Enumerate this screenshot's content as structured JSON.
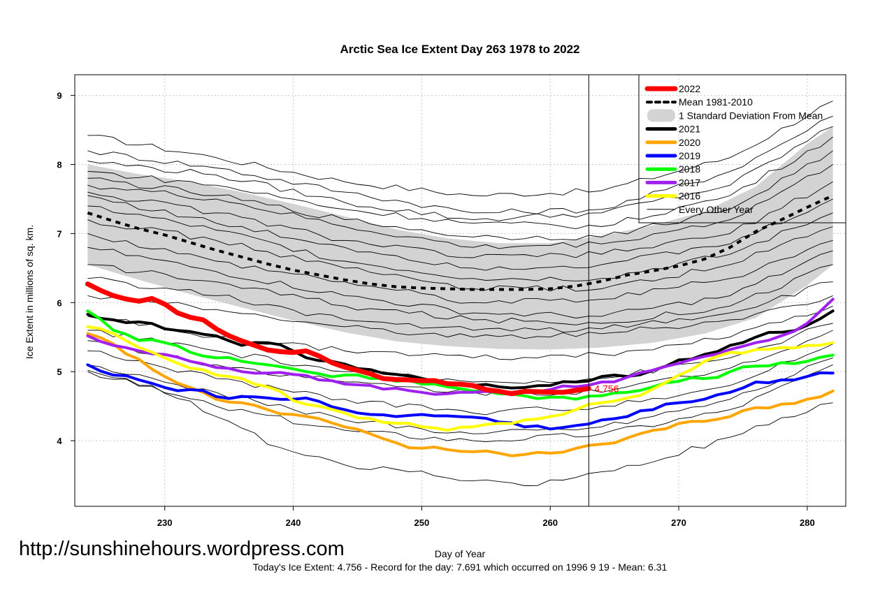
{
  "chart_data": {
    "type": "line",
    "title": "Arctic Sea Ice Extent Day 263 1978 to 2022",
    "xlabel": "Day of Year",
    "ylabel": "Ice Extent in millions of sq. km.",
    "xlim": [
      223,
      283
    ],
    "ylim": [
      3.05,
      9.3
    ],
    "x_ticks": [
      230,
      240,
      250,
      260,
      270,
      280
    ],
    "y_ticks": [
      4,
      5,
      6,
      7,
      8,
      9
    ],
    "current_day": 263,
    "current_value_label": "4.756",
    "legend": [
      {
        "label": "2022",
        "color": "#ff0000",
        "style": "solid-thick"
      },
      {
        "label": "Mean 1981-2010",
        "color": "#000000",
        "style": "dashed"
      },
      {
        "label": "1 Standard Deviation From Mean",
        "color": "#d3d3d3",
        "style": "band"
      },
      {
        "label": "2021",
        "color": "#000000",
        "style": "solid"
      },
      {
        "label": "2020",
        "color": "#ffa500",
        "style": "solid"
      },
      {
        "label": "2019",
        "color": "#0000ff",
        "style": "solid"
      },
      {
        "label": "2018",
        "color": "#00ff00",
        "style": "solid"
      },
      {
        "label": "2017",
        "color": "#a020f0",
        "style": "solid"
      },
      {
        "label": "2016",
        "color": "#ffff00",
        "style": "solid"
      },
      {
        "label": "Every Other Year",
        "color": "#000000",
        "style": "thin"
      }
    ],
    "mean": {
      "name": "Mean 1981-2010",
      "x": [
        224,
        226,
        228,
        230,
        232,
        234,
        236,
        238,
        240,
        242,
        244,
        246,
        248,
        250,
        252,
        254,
        256,
        258,
        260,
        262,
        264,
        266,
        268,
        270,
        272,
        274,
        276,
        278,
        280,
        282
      ],
      "values": [
        7.3,
        7.18,
        7.07,
        6.98,
        6.87,
        6.76,
        6.66,
        6.56,
        6.47,
        6.4,
        6.33,
        6.27,
        6.23,
        6.21,
        6.2,
        6.19,
        6.19,
        6.19,
        6.2,
        6.24,
        6.31,
        6.4,
        6.46,
        6.53,
        6.63,
        6.8,
        7.03,
        7.2,
        7.38,
        7.55
      ]
    },
    "std_band": {
      "name": "1 Standard Deviation From Mean",
      "x": [
        224,
        228,
        232,
        236,
        240,
        244,
        248,
        252,
        256,
        260,
        264,
        268,
        272,
        276,
        280,
        282
      ],
      "upper": [
        8.0,
        7.86,
        7.75,
        7.6,
        7.43,
        7.25,
        7.06,
        6.93,
        6.86,
        6.86,
        6.97,
        7.12,
        7.32,
        7.68,
        8.3,
        8.55
      ],
      "lower": [
        6.55,
        6.33,
        6.12,
        5.93,
        5.74,
        5.57,
        5.44,
        5.37,
        5.33,
        5.32,
        5.35,
        5.42,
        5.55,
        5.78,
        6.25,
        6.55
      ]
    },
    "series": [
      {
        "name": "2022",
        "color": "#ff0000",
        "width": 7,
        "x": [
          224,
          226,
          228,
          229,
          231,
          233,
          235,
          237,
          239,
          241,
          243,
          245,
          247,
          249,
          251,
          253,
          255,
          257,
          259,
          261,
          263
        ],
        "values": [
          6.27,
          6.1,
          6.02,
          6.06,
          5.85,
          5.75,
          5.52,
          5.38,
          5.29,
          5.3,
          5.13,
          5.02,
          4.9,
          4.88,
          4.87,
          4.82,
          4.74,
          4.68,
          4.71,
          4.7,
          4.756
        ]
      },
      {
        "name": "2021",
        "color": "#000000",
        "width": 4,
        "x": [
          224,
          226,
          228,
          230,
          232,
          234,
          236,
          238,
          240,
          242,
          244,
          246,
          248,
          250,
          252,
          254,
          256,
          258,
          260,
          262,
          264,
          266,
          268,
          270,
          272,
          274,
          276,
          278,
          280,
          282
        ],
        "values": [
          5.83,
          5.75,
          5.72,
          5.62,
          5.58,
          5.52,
          5.38,
          5.42,
          5.3,
          5.16,
          5.11,
          5.03,
          4.96,
          4.9,
          4.84,
          4.8,
          4.78,
          4.77,
          4.8,
          4.85,
          4.93,
          4.93,
          5.02,
          5.17,
          5.25,
          5.38,
          5.5,
          5.57,
          5.67,
          5.88
        ]
      },
      {
        "name": "2020",
        "color": "#ffa500",
        "width": 4,
        "x": [
          224,
          226,
          228,
          230,
          232,
          234,
          236,
          238,
          240,
          242,
          244,
          246,
          248,
          250,
          252,
          254,
          256,
          258,
          260,
          262,
          264,
          266,
          268,
          270,
          272,
          274,
          276,
          278,
          280,
          282
        ],
        "values": [
          5.55,
          5.4,
          5.18,
          4.93,
          4.77,
          4.6,
          4.55,
          4.45,
          4.38,
          4.32,
          4.2,
          4.1,
          3.97,
          3.89,
          3.87,
          3.84,
          3.82,
          3.8,
          3.82,
          3.89,
          3.95,
          4.04,
          4.15,
          4.25,
          4.28,
          4.35,
          4.48,
          4.53,
          4.6,
          4.72
        ]
      },
      {
        "name": "2019",
        "color": "#0000ff",
        "width": 4,
        "x": [
          224,
          226,
          228,
          230,
          232,
          234,
          236,
          238,
          240,
          242,
          244,
          246,
          248,
          250,
          252,
          254,
          256,
          258,
          260,
          262,
          264,
          266,
          268,
          270,
          272,
          274,
          276,
          278,
          280,
          282
        ],
        "values": [
          5.1,
          4.95,
          4.88,
          4.77,
          4.74,
          4.64,
          4.64,
          4.62,
          4.6,
          4.57,
          4.45,
          4.38,
          4.35,
          4.38,
          4.36,
          4.34,
          4.27,
          4.2,
          4.17,
          4.22,
          4.3,
          4.35,
          4.45,
          4.55,
          4.6,
          4.7,
          4.85,
          4.88,
          4.93,
          4.98
        ]
      },
      {
        "name": "2018",
        "color": "#00ff00",
        "width": 4,
        "x": [
          224,
          226,
          228,
          230,
          232,
          234,
          236,
          238,
          240,
          242,
          244,
          246,
          248,
          250,
          252,
          254,
          256,
          258,
          260,
          262,
          264,
          266,
          268,
          270,
          272,
          274,
          276,
          278,
          280,
          282
        ],
        "values": [
          5.88,
          5.6,
          5.45,
          5.42,
          5.28,
          5.2,
          5.15,
          5.1,
          5.04,
          4.97,
          4.95,
          4.9,
          4.86,
          4.82,
          4.78,
          4.72,
          4.68,
          4.65,
          4.63,
          4.6,
          4.65,
          4.7,
          4.78,
          4.86,
          4.9,
          5.0,
          5.08,
          5.13,
          5.15,
          5.24
        ]
      },
      {
        "name": "2017",
        "color": "#a020f0",
        "width": 4,
        "x": [
          224,
          226,
          228,
          230,
          232,
          234,
          236,
          238,
          240,
          242,
          244,
          246,
          248,
          250,
          252,
          254,
          256,
          258,
          260,
          262,
          264,
          266,
          268,
          270,
          272,
          274,
          276,
          278,
          280,
          282
        ],
        "values": [
          5.52,
          5.38,
          5.3,
          5.25,
          5.15,
          5.06,
          5.0,
          4.98,
          4.96,
          4.88,
          4.82,
          4.8,
          4.76,
          4.7,
          4.68,
          4.7,
          4.7,
          4.72,
          4.74,
          4.78,
          4.85,
          4.92,
          5.02,
          5.12,
          5.22,
          5.32,
          5.42,
          5.52,
          5.7,
          6.05
        ]
      },
      {
        "name": "2016",
        "color": "#ffff00",
        "width": 4,
        "x": [
          224,
          226,
          228,
          230,
          232,
          234,
          236,
          238,
          240,
          242,
          244,
          246,
          248,
          250,
          252,
          254,
          256,
          258,
          260,
          262,
          264,
          266,
          268,
          270,
          272,
          274,
          276,
          278,
          280,
          282
        ],
        "values": [
          5.65,
          5.55,
          5.35,
          5.2,
          5.05,
          4.95,
          4.9,
          4.78,
          4.58,
          4.5,
          4.4,
          4.32,
          4.25,
          4.2,
          4.15,
          4.2,
          4.25,
          4.3,
          4.35,
          4.45,
          4.55,
          4.62,
          4.75,
          4.95,
          5.15,
          5.28,
          5.32,
          5.35,
          5.38,
          5.42
        ]
      }
    ],
    "other_years": [
      {
        "x": [
          224,
          234,
          244,
          254,
          264,
          274,
          282
        ],
        "values": [
          8.42,
          8.1,
          7.75,
          7.55,
          7.62,
          8.1,
          8.92
        ]
      },
      {
        "x": [
          224,
          234,
          244,
          254,
          264,
          274,
          282
        ],
        "values": [
          8.2,
          7.95,
          7.6,
          7.3,
          7.35,
          7.9,
          8.7
        ]
      },
      {
        "x": [
          224,
          234,
          244,
          254,
          264,
          274,
          282
        ],
        "values": [
          8.05,
          7.85,
          7.45,
          7.2,
          7.3,
          7.7,
          8.55
        ]
      },
      {
        "x": [
          224,
          234,
          244,
          254,
          264,
          274,
          282
        ],
        "values": [
          7.9,
          7.7,
          7.35,
          7.15,
          7.1,
          7.55,
          8.4
        ]
      },
      {
        "x": [
          224,
          234,
          244,
          254,
          264,
          274,
          282
        ],
        "values": [
          7.8,
          7.55,
          7.2,
          6.95,
          6.95,
          7.35,
          8.2
        ]
      },
      {
        "x": [
          224,
          234,
          244,
          254,
          264,
          274,
          282
        ],
        "values": [
          7.7,
          7.5,
          7.1,
          6.8,
          6.85,
          7.2,
          8.0
        ]
      },
      {
        "x": [
          224,
          234,
          244,
          254,
          264,
          274,
          282
        ],
        "values": [
          7.6,
          7.3,
          6.9,
          6.65,
          6.7,
          7.0,
          7.75
        ]
      },
      {
        "x": [
          224,
          234,
          244,
          254,
          264,
          274,
          282
        ],
        "values": [
          7.55,
          7.15,
          6.8,
          6.5,
          6.55,
          6.85,
          7.5
        ]
      },
      {
        "x": [
          224,
          234,
          244,
          254,
          264,
          274,
          282
        ],
        "values": [
          7.4,
          7.05,
          6.6,
          6.35,
          6.35,
          6.7,
          7.3
        ]
      },
      {
        "x": [
          224,
          234,
          244,
          254,
          264,
          274,
          282
        ],
        "values": [
          7.2,
          6.9,
          6.5,
          6.2,
          6.2,
          6.55,
          7.1
        ]
      },
      {
        "x": [
          224,
          234,
          244,
          254,
          264,
          274,
          282
        ],
        "values": [
          7.0,
          6.6,
          6.3,
          6.0,
          6.05,
          6.35,
          6.9
        ]
      },
      {
        "x": [
          224,
          234,
          244,
          254,
          264,
          274,
          282
        ],
        "values": [
          6.8,
          6.45,
          6.1,
          5.85,
          5.8,
          6.1,
          6.75
        ]
      },
      {
        "x": [
          224,
          234,
          244,
          254,
          264,
          274,
          282
        ],
        "values": [
          6.55,
          6.3,
          5.95,
          5.75,
          5.7,
          5.95,
          6.55
        ]
      },
      {
        "x": [
          224,
          234,
          244,
          254,
          264,
          274,
          282
        ],
        "values": [
          6.35,
          6.1,
          5.75,
          5.6,
          5.62,
          5.85,
          6.3
        ]
      },
      {
        "x": [
          224,
          234,
          244,
          254,
          264,
          274,
          282
        ],
        "values": [
          6.1,
          5.9,
          5.65,
          5.5,
          5.55,
          5.75,
          6.1
        ]
      },
      {
        "x": [
          224,
          234,
          244,
          254,
          264,
          274,
          282
        ],
        "values": [
          5.8,
          5.5,
          5.3,
          5.2,
          5.25,
          5.5,
          5.95
        ]
      },
      {
        "x": [
          224,
          234,
          244,
          254,
          264,
          274,
          282
        ],
        "values": [
          5.45,
          5.1,
          4.85,
          4.7,
          4.7,
          5.05,
          5.6
        ]
      },
      {
        "x": [
          224,
          234,
          244,
          254,
          264,
          274,
          282
        ],
        "values": [
          5.3,
          4.9,
          4.6,
          4.4,
          4.5,
          4.8,
          5.4
        ]
      },
      {
        "x": [
          224,
          234,
          244,
          254,
          264,
          274,
          282
        ],
        "values": [
          5.0,
          4.5,
          4.15,
          4.0,
          4.1,
          4.45,
          5.1
        ]
      },
      {
        "x": [
          224,
          229,
          234,
          239,
          244,
          249,
          254,
          259,
          264,
          269,
          274,
          279,
          282
        ],
        "values": [
          5.02,
          4.8,
          4.35,
          3.9,
          3.65,
          3.55,
          3.42,
          3.35,
          3.55,
          3.75,
          4.05,
          4.35,
          4.55
        ]
      },
      {
        "x": [
          224,
          234,
          244,
          254,
          264,
          274,
          282
        ],
        "values": [
          5.1,
          4.7,
          4.3,
          4.1,
          4.2,
          4.6,
          5.2
        ]
      },
      {
        "x": [
          224,
          234,
          244,
          254,
          264,
          274,
          282
        ],
        "values": [
          5.6,
          5.3,
          5.0,
          4.85,
          4.9,
          5.2,
          5.7
        ]
      }
    ]
  },
  "url_text": "http://sunshinehours.wordpress.com",
  "footer_text": "Today's Ice Extent: 4.756  - Record for the day: 7.691 which occurred on 1996 9 19  - Mean: 6.31"
}
